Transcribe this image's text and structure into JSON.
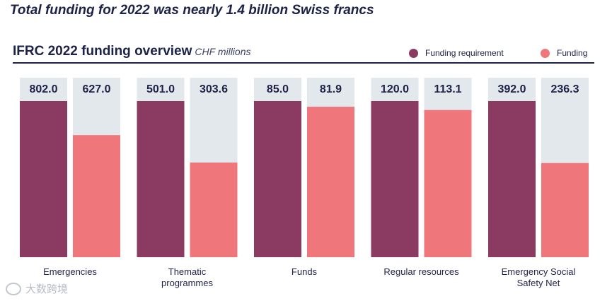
{
  "headline": "Total funding for 2022 was nearly 1.4 billion Swiss francs",
  "colors": {
    "requirement": "#8b3a62",
    "funding": "#ef767b",
    "background_bar": "#e3e8ec",
    "text": "#1d2247"
  },
  "watermark": "大数跨境",
  "chart_data": {
    "type": "bar",
    "title": "IFRC 2022 funding overview",
    "subtitle": "CHF millions",
    "legend": [
      "Funding requirement",
      "Funding"
    ],
    "legend_position": "top-right",
    "categories": [
      {
        "label_lines": [
          "Emergencies"
        ],
        "ymax": 802.0
      },
      {
        "label_lines": [
          "Thematic",
          "programmes"
        ],
        "ymax": 501.0
      },
      {
        "label_lines": [
          "Funds"
        ],
        "ymax": 85.0
      },
      {
        "label_lines": [
          "Regular resources"
        ],
        "ymax": 120.0
      },
      {
        "label_lines": [
          "Emergency Social",
          "Safety Net"
        ],
        "ymax": 392.0
      }
    ],
    "series": [
      {
        "name": "Funding requirement",
        "values": [
          802.0,
          501.0,
          85.0,
          120.0,
          392.0
        ],
        "labels": [
          "802.0",
          "501.0",
          "85.0",
          "120.0",
          "392.0"
        ]
      },
      {
        "name": "Funding",
        "values": [
          627.0,
          303.6,
          81.9,
          113.1,
          236.3
        ],
        "labels": [
          "627.0",
          "303.6",
          "81.9",
          "113.1",
          "236.3"
        ]
      }
    ],
    "scale_note": "Each category drawn on its own scale: requirement value equals full bar height"
  }
}
